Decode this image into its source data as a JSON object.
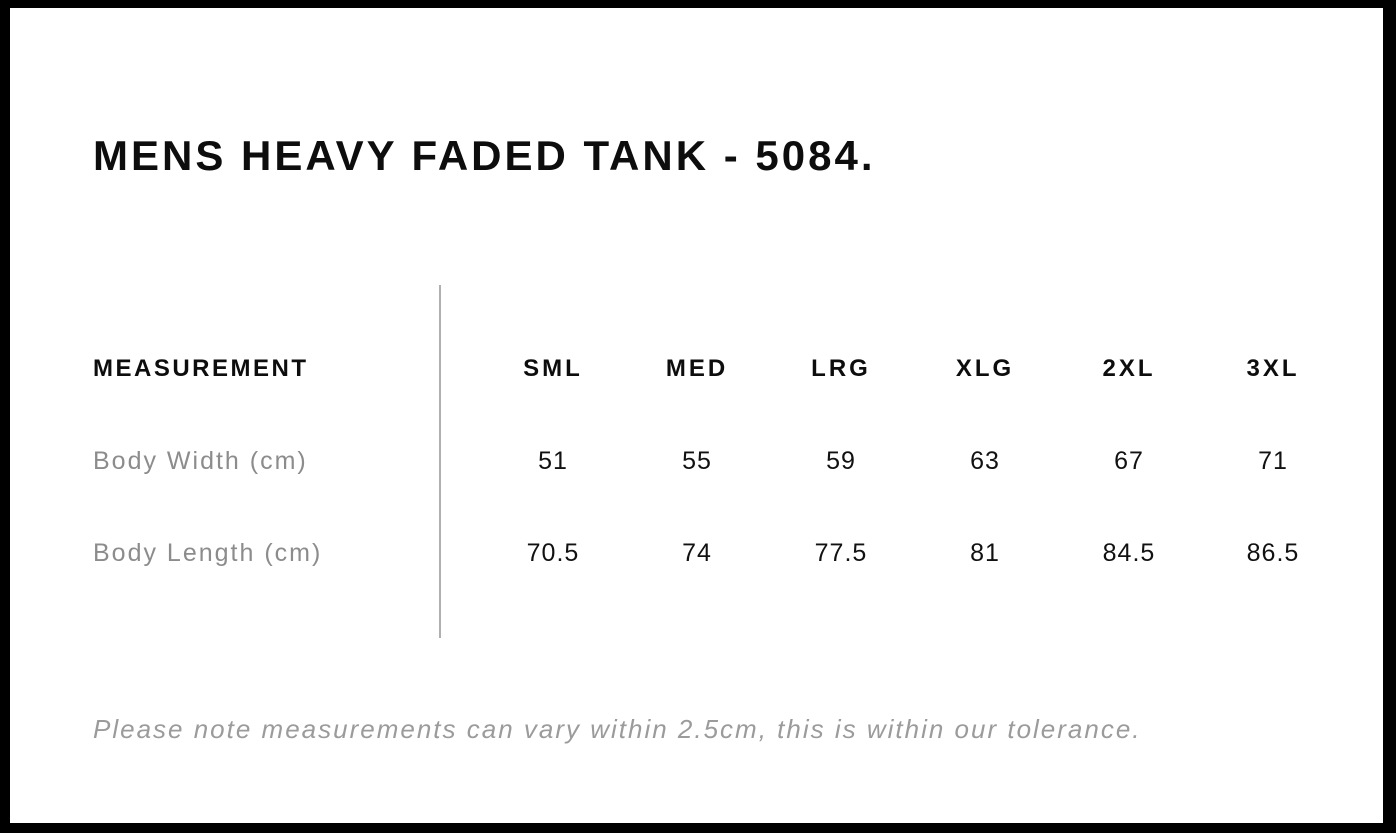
{
  "page": {
    "title": "MENS HEAVY FADED TANK - 5084.",
    "tolerance_note": "Please note measurements can vary within 2.5cm, this is within our tolerance."
  },
  "size_chart": {
    "measurement_header": "MEASUREMENT",
    "sizes": [
      "SML",
      "MED",
      "LRG",
      "XLG",
      "2XL",
      "3XL"
    ],
    "rows": [
      {
        "label": "Body Width (cm)",
        "values": [
          "51",
          "55",
          "59",
          "63",
          "67",
          "71"
        ]
      },
      {
        "label": "Body Length (cm)",
        "values": [
          "70.5",
          "74",
          "77.5",
          "81",
          "84.5",
          "86.5"
        ]
      }
    ]
  },
  "colors": {
    "border": "#000000",
    "background": "#ffffff",
    "heading_text": "#0d0d0d",
    "label_text": "#8c8c8c",
    "note_text": "#9b9b9b",
    "divider": "#b0b0b0"
  }
}
